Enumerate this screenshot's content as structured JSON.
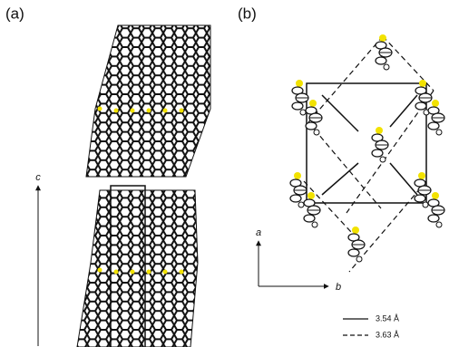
{
  "panel_a": {
    "label": "(a)",
    "axis_label": "c"
  },
  "panel_b": {
    "label": "(b)",
    "axis_a_label": "a",
    "axis_b_label": "b",
    "legend": [
      "3.54 Å",
      "3.63 Å"
    ]
  }
}
